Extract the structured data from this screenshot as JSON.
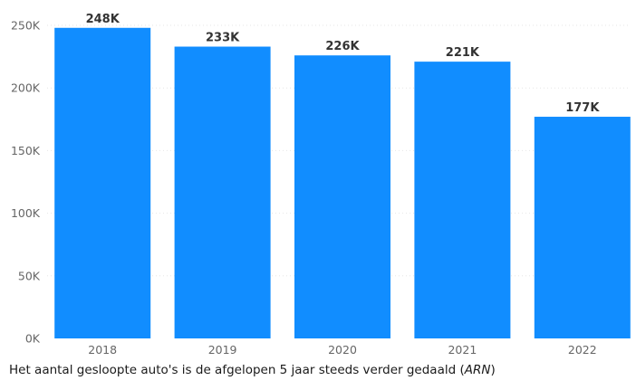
{
  "chart_data": {
    "type": "bar",
    "categories": [
      "2018",
      "2019",
      "2020",
      "2021",
      "2022"
    ],
    "values": [
      248000,
      233000,
      226000,
      221000,
      177000
    ],
    "data_labels": [
      "248K",
      "233K",
      "226K",
      "221K",
      "177K"
    ],
    "y_ticks": [
      0,
      50000,
      100000,
      150000,
      200000,
      250000
    ],
    "y_tick_labels": [
      "0K",
      "50K",
      "100K",
      "150K",
      "200K",
      "250K"
    ],
    "ylim": [
      0,
      250000
    ],
    "title": "",
    "xlabel": "",
    "ylabel": "",
    "grid": true,
    "colors": {
      "bar": "#118DFF"
    }
  },
  "caption": {
    "text": "Het aantal gesloopte auto's is de afgelopen 5 jaar steeds verder gedaald (",
    "source": "ARN",
    "close": ")"
  }
}
